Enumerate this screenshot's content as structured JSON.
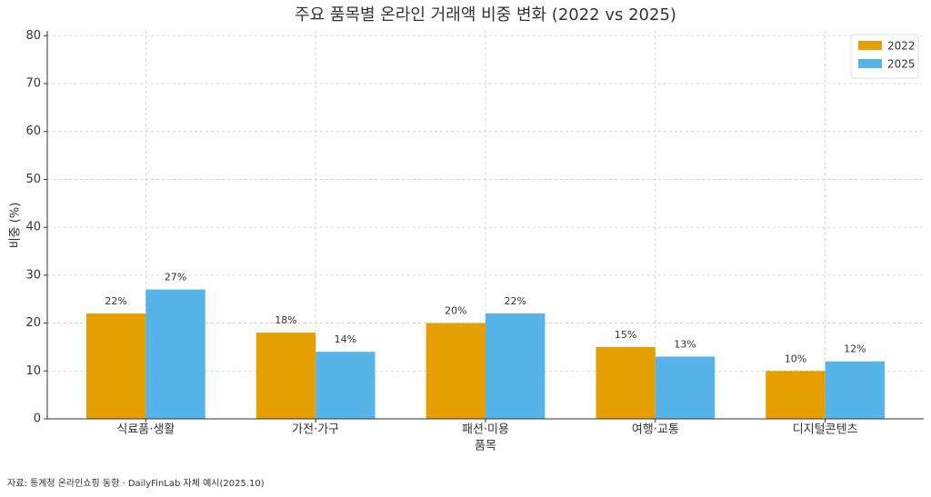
{
  "chart_data": {
    "type": "bar",
    "title": "주요 품목별 온라인 거래액 비중 변화 (2022 vs 2025)",
    "x_label": "품목",
    "y_label": "비중 (%)",
    "categories": [
      "식료품·생활",
      "가전·가구",
      "패션·미용",
      "여행·교통",
      "디지털콘텐츠"
    ],
    "series": [
      {
        "name": "2022",
        "color": "#e69f00",
        "values": [
          22,
          18,
          20,
          15,
          10
        ],
        "value_labels": [
          "22%",
          "18%",
          "20%",
          "15%",
          "10%"
        ]
      },
      {
        "name": "2025",
        "color": "#56b4e9",
        "values": [
          27,
          14,
          22,
          13,
          12
        ],
        "value_labels": [
          "27%",
          "14%",
          "22%",
          "13%",
          "12%"
        ]
      }
    ],
    "ylim": [
      0,
      81
    ],
    "yticks": [
      0,
      10,
      20,
      30,
      40,
      50,
      60,
      70,
      80
    ],
    "grid": true,
    "legend": "upper-right",
    "note": "자료: 통계청 온라인쇼핑 동향 · DailyFinLab 자체 예시(2025.10)"
  }
}
